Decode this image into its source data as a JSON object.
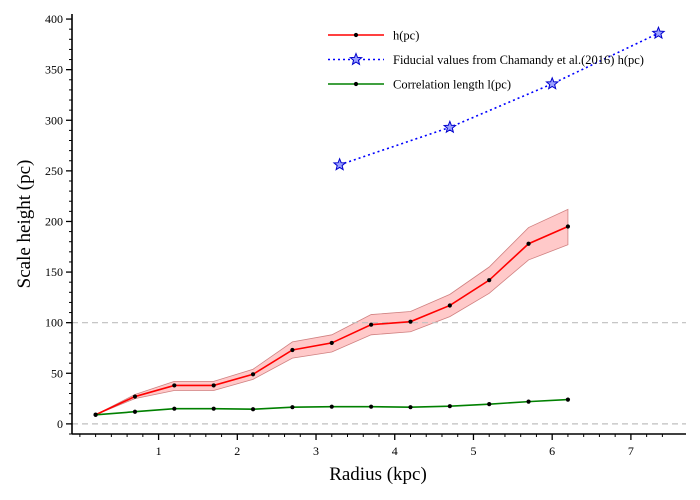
{
  "chart_data": {
    "type": "line",
    "xlabel": "Radius (kpc)",
    "ylabel": "Scale height (pc)",
    "xlim": [
      -0.1,
      7.7
    ],
    "ylim": [
      -10,
      405
    ],
    "x_ticks": [
      1,
      2,
      3,
      4,
      5,
      6,
      7
    ],
    "y_ticks": [
      0,
      50,
      100,
      150,
      200,
      250,
      300,
      350,
      400
    ],
    "x_tick_labels": [
      "1",
      "2",
      "3",
      "4",
      "5",
      "6",
      "7"
    ],
    "y_tick_labels": [
      "0",
      "50",
      "100",
      "150",
      "200",
      "250",
      "300",
      "350",
      "400"
    ],
    "grid": false,
    "reference_lines": [
      0,
      100
    ],
    "legend_position": "top-right",
    "series": [
      {
        "name": "h(pc)",
        "legend_label": "h(pc)",
        "color": "#ff0000",
        "marker": "dot",
        "line_style": "solid",
        "x": [
          0.2,
          0.7,
          1.2,
          1.7,
          2.2,
          2.7,
          3.2,
          3.7,
          4.2,
          4.7,
          5.2,
          5.7,
          6.2
        ],
        "y": [
          9,
          27,
          38,
          38,
          49,
          73,
          80,
          98,
          101,
          117,
          142,
          178,
          195
        ],
        "band_lower": [
          9,
          25,
          33,
          33,
          44,
          65,
          71,
          88,
          91,
          106,
          129,
          162,
          177
        ],
        "band_upper": [
          9,
          29,
          42,
          42,
          54,
          81,
          88,
          108,
          111,
          128,
          155,
          194,
          212
        ],
        "band_color": "#ff4d4d"
      },
      {
        "name": "Fiducial values from Chamandy et al.(2016) h(pc)",
        "legend_label": "Fiducial values from Chamandy et al.(2016) h(pc)",
        "color": "#0000ff",
        "marker": "star",
        "line_style": "dotted",
        "x": [
          3.3,
          4.7,
          6.0,
          7.35
        ],
        "y": [
          256,
          293,
          336,
          386
        ]
      },
      {
        "name": "Correlation length l(pc)",
        "legend_label": "Correlation length l(pc)",
        "color": "#008000",
        "marker": "dot",
        "line_style": "solid",
        "x": [
          0.2,
          0.7,
          1.2,
          1.7,
          2.2,
          2.7,
          3.2,
          3.7,
          4.2,
          4.7,
          5.2,
          5.7,
          6.2
        ],
        "y": [
          9,
          12,
          15,
          15,
          14.5,
          16.5,
          17,
          17,
          16.5,
          17.5,
          19.5,
          22,
          24
        ]
      }
    ]
  }
}
